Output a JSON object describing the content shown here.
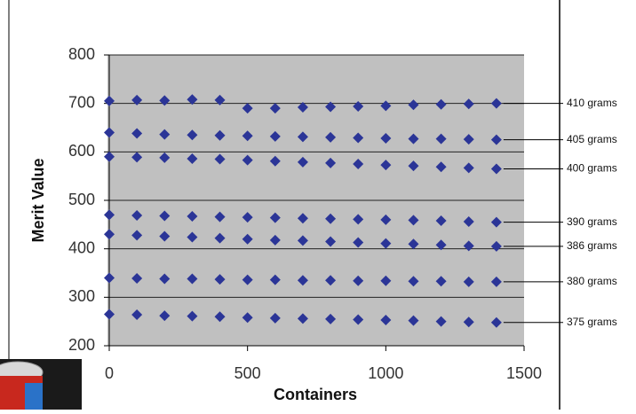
{
  "chart_data": {
    "type": "scatter",
    "x_label": "Containers",
    "y_label": "Merit Value",
    "x": [
      0,
      100,
      200,
      300,
      400,
      500,
      600,
      700,
      800,
      900,
      1000,
      1100,
      1200,
      1300,
      1400
    ],
    "series": [
      {
        "name": "410 grams",
        "color": "#2b3597",
        "values": [
          705,
          707,
          706,
          708,
          707,
          690,
          690,
          692,
          693,
          694,
          695,
          697,
          698,
          699,
          700
        ]
      },
      {
        "name": "405 grams",
        "color": "#2b3597",
        "values": [
          640,
          638,
          636,
          635,
          634,
          633,
          632,
          631,
          630,
          629,
          628,
          627,
          627,
          626,
          625
        ]
      },
      {
        "name": "400 grams",
        "color": "#2b3597",
        "values": [
          590,
          589,
          588,
          586,
          585,
          583,
          581,
          579,
          577,
          575,
          573,
          571,
          569,
          567,
          565
        ]
      },
      {
        "name": "390 grams",
        "color": "#2b3597",
        "values": [
          470,
          469,
          468,
          467,
          466,
          465,
          464,
          463,
          462,
          461,
          460,
          459,
          458,
          456,
          455
        ]
      },
      {
        "name": "386 grams",
        "color": "#2b3597",
        "values": [
          430,
          428,
          426,
          424,
          422,
          420,
          418,
          417,
          415,
          413,
          411,
          410,
          408,
          406,
          405
        ]
      },
      {
        "name": "380 grams",
        "color": "#2b3597",
        "values": [
          340,
          339,
          338,
          338,
          337,
          336,
          336,
          335,
          335,
          334,
          334,
          333,
          333,
          332,
          332
        ]
      },
      {
        "name": "375 grams",
        "color": "#2b3597",
        "values": [
          265,
          264,
          262,
          261,
          260,
          258,
          257,
          256,
          255,
          254,
          253,
          252,
          250,
          249,
          248
        ]
      }
    ],
    "xlim": [
      0,
      1500
    ],
    "xticks": [
      0,
      500,
      1000,
      1500
    ],
    "ylim": [
      200,
      800
    ],
    "yticks": [
      200,
      300,
      400,
      500,
      600,
      700,
      800
    ],
    "grid": true
  }
}
